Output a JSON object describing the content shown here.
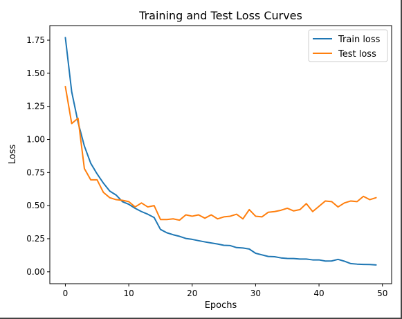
{
  "chart_data": {
    "type": "line",
    "title": "Training and Test Loss Curves",
    "xlabel": "Epochs",
    "ylabel": "Loss",
    "xlim": [
      -2.45,
      51.45
    ],
    "ylim": [
      -0.09,
      1.86
    ],
    "xticks": [
      0,
      10,
      20,
      30,
      40,
      50
    ],
    "xtick_labels": [
      "0",
      "10",
      "20",
      "30",
      "40",
      "50"
    ],
    "yticks": [
      0.0,
      0.25,
      0.5,
      0.75,
      1.0,
      1.25,
      1.5,
      1.75
    ],
    "ytick_labels": [
      "0.00",
      "0.25",
      "0.50",
      "0.75",
      "1.00",
      "1.25",
      "1.50",
      "1.75"
    ],
    "grid": false,
    "legend_position": "upper right",
    "x": [
      0,
      1,
      2,
      3,
      4,
      5,
      6,
      7,
      8,
      9,
      10,
      11,
      12,
      13,
      14,
      15,
      16,
      17,
      18,
      19,
      20,
      21,
      22,
      23,
      24,
      25,
      26,
      27,
      28,
      29,
      30,
      31,
      32,
      33,
      34,
      35,
      36,
      37,
      38,
      39,
      40,
      41,
      42,
      43,
      44,
      45,
      46,
      47,
      48,
      49
    ],
    "series": [
      {
        "name": "Train loss",
        "color": "#1f77b4",
        "values": [
          1.77,
          1.36,
          1.13,
          0.95,
          0.82,
          0.74,
          0.67,
          0.61,
          0.58,
          0.53,
          0.51,
          0.48,
          0.455,
          0.435,
          0.41,
          0.32,
          0.295,
          0.28,
          0.268,
          0.252,
          0.245,
          0.235,
          0.226,
          0.218,
          0.21,
          0.2,
          0.198,
          0.183,
          0.18,
          0.172,
          0.14,
          0.128,
          0.116,
          0.114,
          0.105,
          0.101,
          0.1,
          0.096,
          0.096,
          0.09,
          0.09,
          0.081,
          0.082,
          0.094,
          0.08,
          0.062,
          0.058,
          0.056,
          0.055,
          0.052
        ]
      },
      {
        "name": "Test loss",
        "color": "#ff7f0e",
        "values": [
          1.4,
          1.12,
          1.16,
          0.78,
          0.695,
          0.695,
          0.6,
          0.56,
          0.545,
          0.54,
          0.53,
          0.49,
          0.52,
          0.49,
          0.5,
          0.395,
          0.395,
          0.4,
          0.39,
          0.43,
          0.42,
          0.43,
          0.405,
          0.43,
          0.4,
          0.415,
          0.42,
          0.435,
          0.4,
          0.47,
          0.42,
          0.415,
          0.45,
          0.455,
          0.465,
          0.48,
          0.46,
          0.47,
          0.515,
          0.455,
          0.495,
          0.535,
          0.53,
          0.49,
          0.52,
          0.535,
          0.53,
          0.57,
          0.545,
          0.56
        ]
      }
    ]
  }
}
